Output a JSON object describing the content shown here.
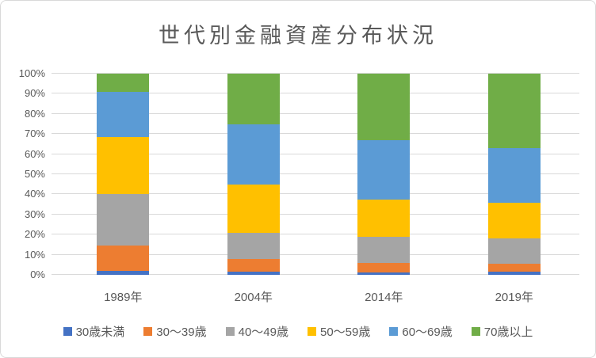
{
  "title": "世代別金融資産分布状況",
  "chart_data": {
    "type": "bar",
    "subtype": "100%-stacked-column",
    "title": "世代別金融資産分布状況",
    "categories": [
      "1989年",
      "2004年",
      "2014年",
      "2019年"
    ],
    "series": [
      {
        "name": "30歳未満",
        "color": "#4472C4",
        "values": [
          2.0,
          1.5,
          1.0,
          1.5
        ]
      },
      {
        "name": "30〜39歳",
        "color": "#ED7D31",
        "values": [
          12.5,
          6.5,
          5.0,
          4.0
        ]
      },
      {
        "name": "40〜49歳",
        "color": "#A5A5A5",
        "values": [
          25.5,
          13.0,
          13.0,
          12.5
        ]
      },
      {
        "name": "50〜59歳",
        "color": "#FFC000",
        "values": [
          28.5,
          24.0,
          18.5,
          18.0
        ]
      },
      {
        "name": "60〜69歳",
        "color": "#5B9BD5",
        "values": [
          22.5,
          30.0,
          29.5,
          27.0
        ]
      },
      {
        "name": "70歳以上",
        "color": "#70AD47",
        "values": [
          9.0,
          25.0,
          33.0,
          37.0
        ]
      }
    ],
    "y_axis": {
      "min": 0,
      "max": 100,
      "step": 10,
      "tick_labels": [
        "0%",
        "10%",
        "20%",
        "30%",
        "40%",
        "50%",
        "60%",
        "70%",
        "80%",
        "90%",
        "100%"
      ]
    },
    "grid": true,
    "gridline_color": "#D9D9D9",
    "text_color": "#595959",
    "legend_position": "bottom",
    "xlabel": "",
    "ylabel": ""
  }
}
